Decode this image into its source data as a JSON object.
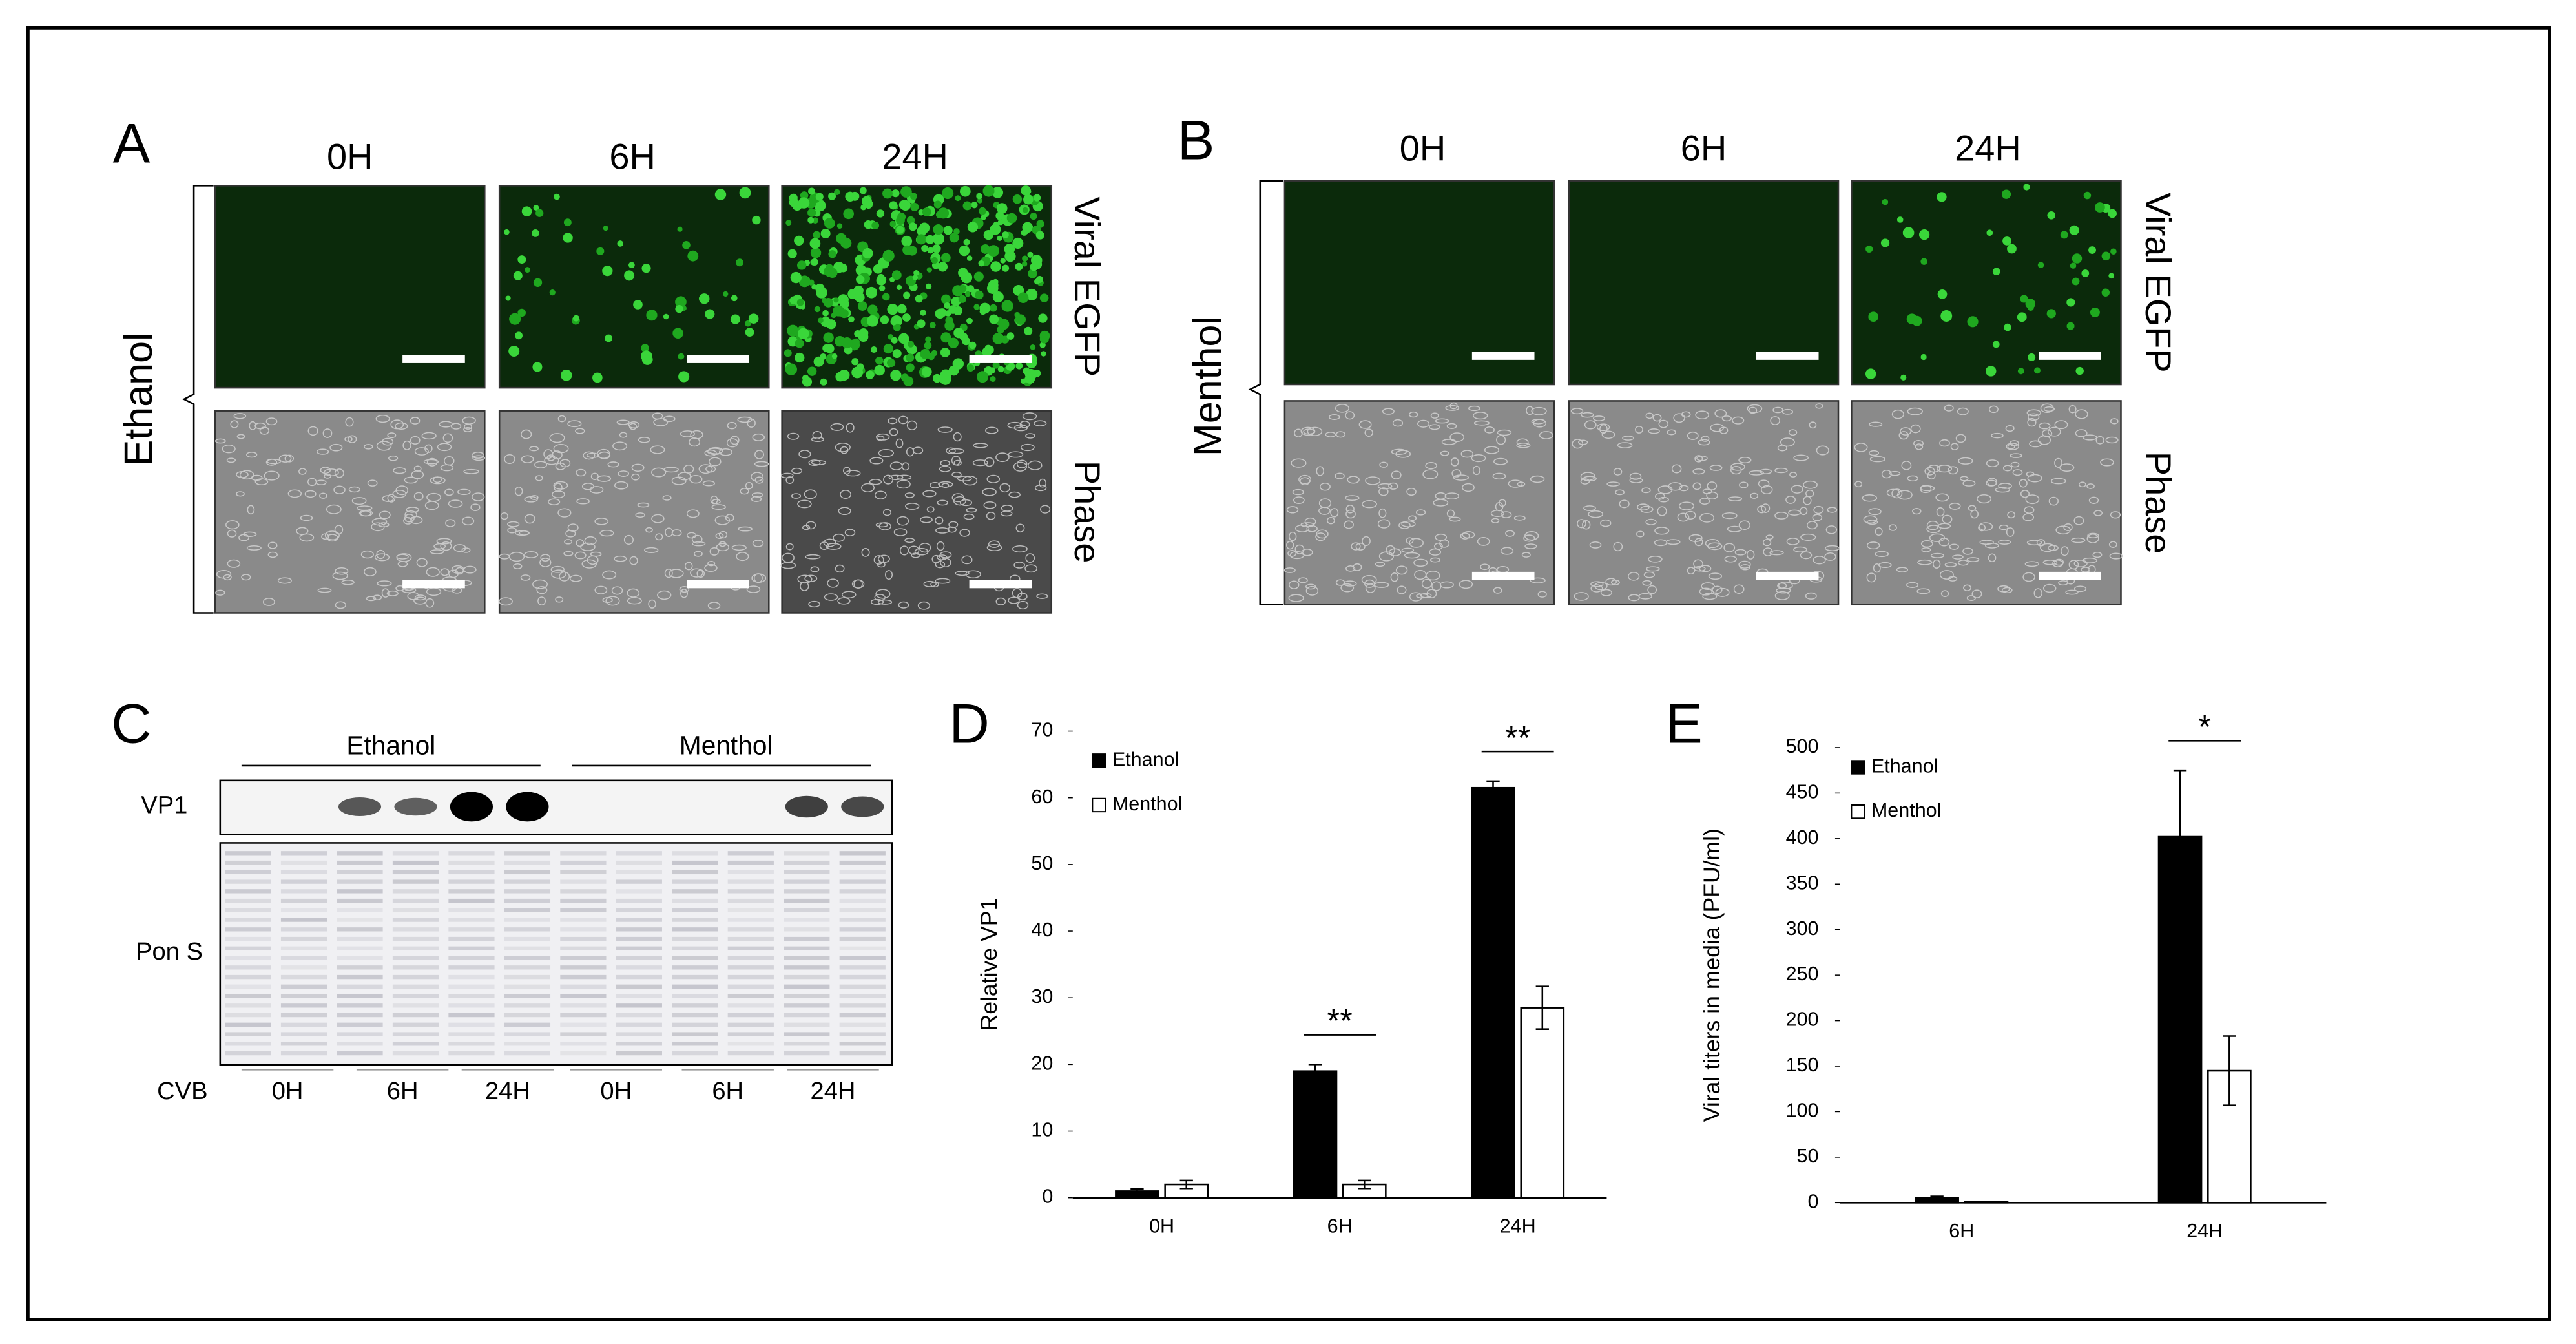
{
  "panel_a": {
    "label": "A",
    "group": "Ethanol",
    "columns": [
      "0H",
      "6H",
      "24H"
    ],
    "row_labels": [
      "Viral EGFP",
      "Phase"
    ]
  },
  "panel_b": {
    "label": "B",
    "group": "Menthol",
    "columns": [
      "0H",
      "6H",
      "24H"
    ],
    "row_labels": [
      "Viral EGFP",
      "Phase"
    ]
  },
  "panel_c": {
    "label": "C",
    "groups": [
      "Ethanol",
      "Menthol"
    ],
    "rows": [
      "VP1",
      "Pon S"
    ],
    "lane_header": "CVB",
    "lanes": [
      "0H",
      "6H",
      "24H",
      "0H",
      "6H",
      "24H"
    ]
  },
  "chart_data": [
    {
      "type": "bar",
      "panel_label": "D",
      "y_label": "Relative VP1",
      "categories": [
        "0H",
        "6H",
        "24H"
      ],
      "series": [
        {
          "name": "Ethanol",
          "color": "#000000",
          "values": [
            1,
            19,
            61.5
          ],
          "errors": [
            0.3,
            1,
            1
          ]
        },
        {
          "name": "Menthol",
          "color": "#ffffff",
          "values": [
            2,
            2,
            28.5
          ],
          "errors": [
            0.6,
            0.6,
            3.2
          ]
        }
      ],
      "significance": [
        null,
        "**",
        "**"
      ],
      "ylim": [
        0,
        70
      ],
      "yticks": [
        0,
        10,
        20,
        30,
        40,
        50,
        60,
        70
      ],
      "legend": "upper-left"
    },
    {
      "type": "bar",
      "panel_label": "E",
      "y_label": "Viral titers in media (PFU/ml)",
      "categories": [
        "6H",
        "24H"
      ],
      "series": [
        {
          "name": "Ethanol",
          "color": "#000000",
          "values": [
            5,
            402
          ],
          "errors": [
            2,
            73
          ]
        },
        {
          "name": "Menthol",
          "color": "#ffffff",
          "values": [
            1,
            145
          ],
          "errors": [
            0,
            38
          ]
        }
      ],
      "significance": [
        null,
        "*"
      ],
      "ylim": [
        0,
        500
      ],
      "yticks": [
        0,
        50,
        100,
        150,
        200,
        250,
        300,
        350,
        400,
        450,
        500
      ],
      "legend": "upper-left"
    }
  ]
}
